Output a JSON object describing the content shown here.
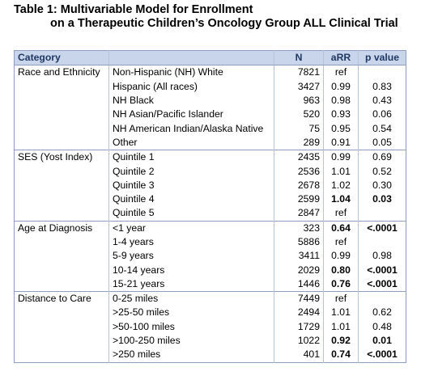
{
  "title": {
    "line1": "Table 1: Multivariable Model for Enrollment",
    "line2": "on a Therapeutic Children’s Oncology Group ALL Clinical Trial"
  },
  "headers": {
    "category": "Category",
    "subcategory": "",
    "n": "N",
    "arr": "aRR",
    "p": "p value"
  },
  "groups": [
    {
      "category": "Race and Ethnicity",
      "rows": [
        {
          "label": "Non-Hispanic (NH) White",
          "n": "7821",
          "arr": "ref",
          "p": "",
          "bold": false
        },
        {
          "label": "Hispanic (All races)",
          "n": "3427",
          "arr": "0.99",
          "p": "0.83",
          "bold": false
        },
        {
          "label": "NH Black",
          "n": "963",
          "arr": "0.98",
          "p": "0.43",
          "bold": false
        },
        {
          "label": "NH Asian/Pacific Islander",
          "n": "520",
          "arr": "0.93",
          "p": "0.06",
          "bold": false
        },
        {
          "label": "NH American Indian/Alaska Native",
          "n": "75",
          "arr": "0.95",
          "p": "0.54",
          "bold": false
        },
        {
          "label": "Other",
          "n": "289",
          "arr": "0.91",
          "p": "0.05",
          "bold": false
        }
      ]
    },
    {
      "category": "SES (Yost Index)",
      "rows": [
        {
          "label": "Quintile 1",
          "n": "2435",
          "arr": "0.99",
          "p": "0.69",
          "bold": false
        },
        {
          "label": "Quintile 2",
          "n": "2536",
          "arr": "1.01",
          "p": "0.52",
          "bold": false
        },
        {
          "label": "Quintile 3",
          "n": "2678",
          "arr": "1.02",
          "p": "0.30",
          "bold": false
        },
        {
          "label": "Quintile 4",
          "n": "2599",
          "arr": "1.04",
          "p": "0.03",
          "bold": true
        },
        {
          "label": "Quintile 5",
          "n": "2847",
          "arr": "ref",
          "p": "",
          "bold": false
        }
      ]
    },
    {
      "category": "Age at Diagnosis",
      "rows": [
        {
          "label": "<1 year",
          "n": "323",
          "arr": "0.64",
          "p": "<.0001",
          "bold": true
        },
        {
          "label": "1-4 years",
          "n": "5886",
          "arr": "ref",
          "p": "",
          "bold": false
        },
        {
          "label": "5-9 years",
          "n": "3411",
          "arr": "0.99",
          "p": "0.98",
          "bold": false
        },
        {
          "label": "10-14 years",
          "n": "2029",
          "arr": "0.80",
          "p": "<.0001",
          "bold": true
        },
        {
          "label": "15-21 years",
          "n": "1446",
          "arr": "0.76",
          "p": "<.0001",
          "bold": true
        }
      ]
    },
    {
      "category": "Distance to Care",
      "rows": [
        {
          "label": "0-25 miles",
          "n": "7449",
          "arr": "ref",
          "p": "",
          "bold": false
        },
        {
          "label": ">25-50 miles",
          "n": "2494",
          "arr": "1.01",
          "p": "0.62",
          "bold": false
        },
        {
          "label": ">50-100 miles",
          "n": "1729",
          "arr": "1.01",
          "p": "0.48",
          "bold": false
        },
        {
          "label": ">100-250 miles",
          "n": "1022",
          "arr": "0.92",
          "p": "0.01",
          "bold": true
        },
        {
          "label": ">250 miles",
          "n": "401",
          "arr": "0.74",
          "p": "<.0001",
          "bold": true
        }
      ]
    }
  ]
}
